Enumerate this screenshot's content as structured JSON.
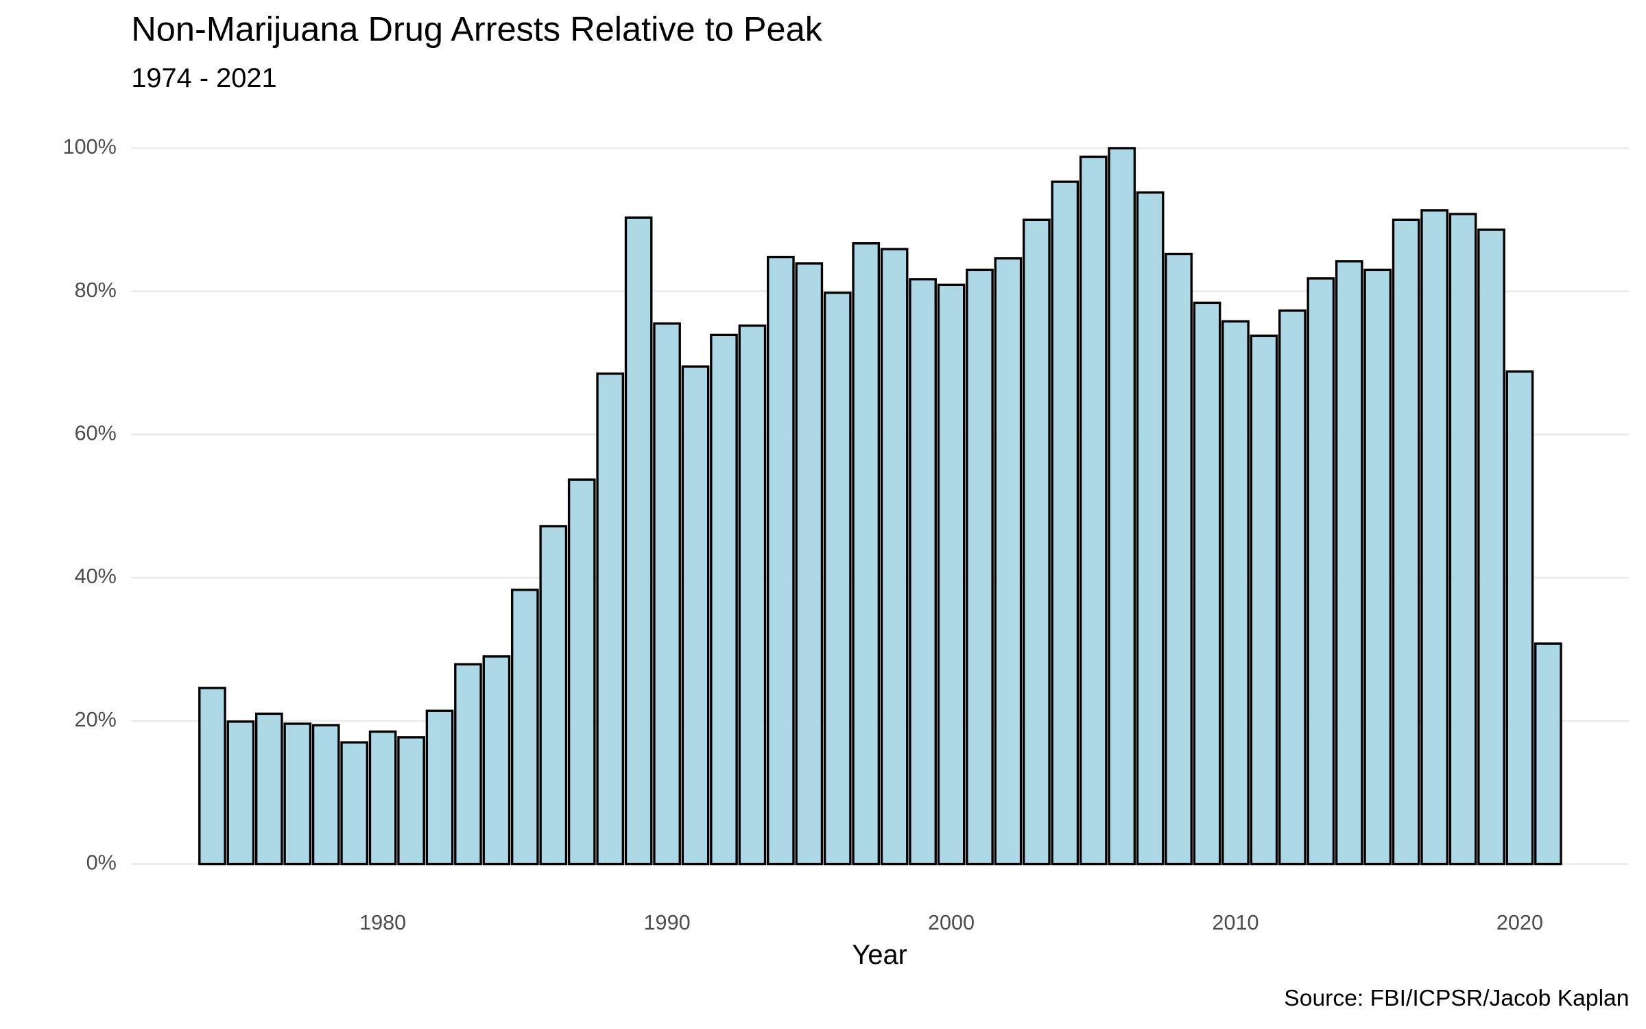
{
  "chart_data": {
    "type": "bar",
    "title": "Non-Marijuana Drug Arrests Relative to Peak",
    "subtitle": "1974 - 2021",
    "x_label": "Year",
    "caption": "Source: FBI/ICPSR/Jacob Kaplan",
    "x": [
      1974,
      1975,
      1976,
      1977,
      1978,
      1979,
      1980,
      1981,
      1982,
      1983,
      1984,
      1985,
      1986,
      1987,
      1988,
      1989,
      1990,
      1991,
      1992,
      1993,
      1994,
      1995,
      1996,
      1997,
      1998,
      1999,
      2000,
      2001,
      2002,
      2003,
      2004,
      2005,
      2006,
      2007,
      2008,
      2009,
      2010,
      2011,
      2012,
      2013,
      2014,
      2015,
      2016,
      2017,
      2018,
      2019,
      2020,
      2021
    ],
    "values": [
      24.6,
      19.9,
      21.0,
      19.6,
      19.4,
      17.0,
      18.5,
      17.7,
      21.4,
      27.9,
      29.0,
      38.3,
      47.2,
      53.7,
      68.5,
      90.3,
      75.5,
      69.5,
      73.9,
      75.2,
      84.8,
      83.9,
      79.8,
      86.7,
      85.9,
      81.7,
      80.9,
      83.0,
      84.6,
      90.0,
      95.3,
      98.8,
      100,
      93.8,
      85.2,
      78.4,
      75.8,
      73.8,
      77.3,
      81.8,
      84.2,
      83.0,
      90.0,
      91.3,
      90.8,
      88.6,
      68.8,
      30.8
    ],
    "color": "#add8e6",
    "edge_color": "#000000",
    "bar_width": 0.9,
    "xlim": [
      1971.15,
      2023.85
    ],
    "xticks": [
      1980,
      1990,
      2000,
      2010,
      2020
    ],
    "ylim": [
      -5,
      105
    ],
    "yticks": [
      {
        "value": 0,
        "label": "0%"
      },
      {
        "value": 20,
        "label": "20%"
      },
      {
        "value": 40,
        "label": "40%"
      },
      {
        "value": 60,
        "label": "60%"
      },
      {
        "value": 80,
        "label": "80%"
      },
      {
        "value": 100,
        "label": "100%"
      }
    ],
    "grid": true
  }
}
